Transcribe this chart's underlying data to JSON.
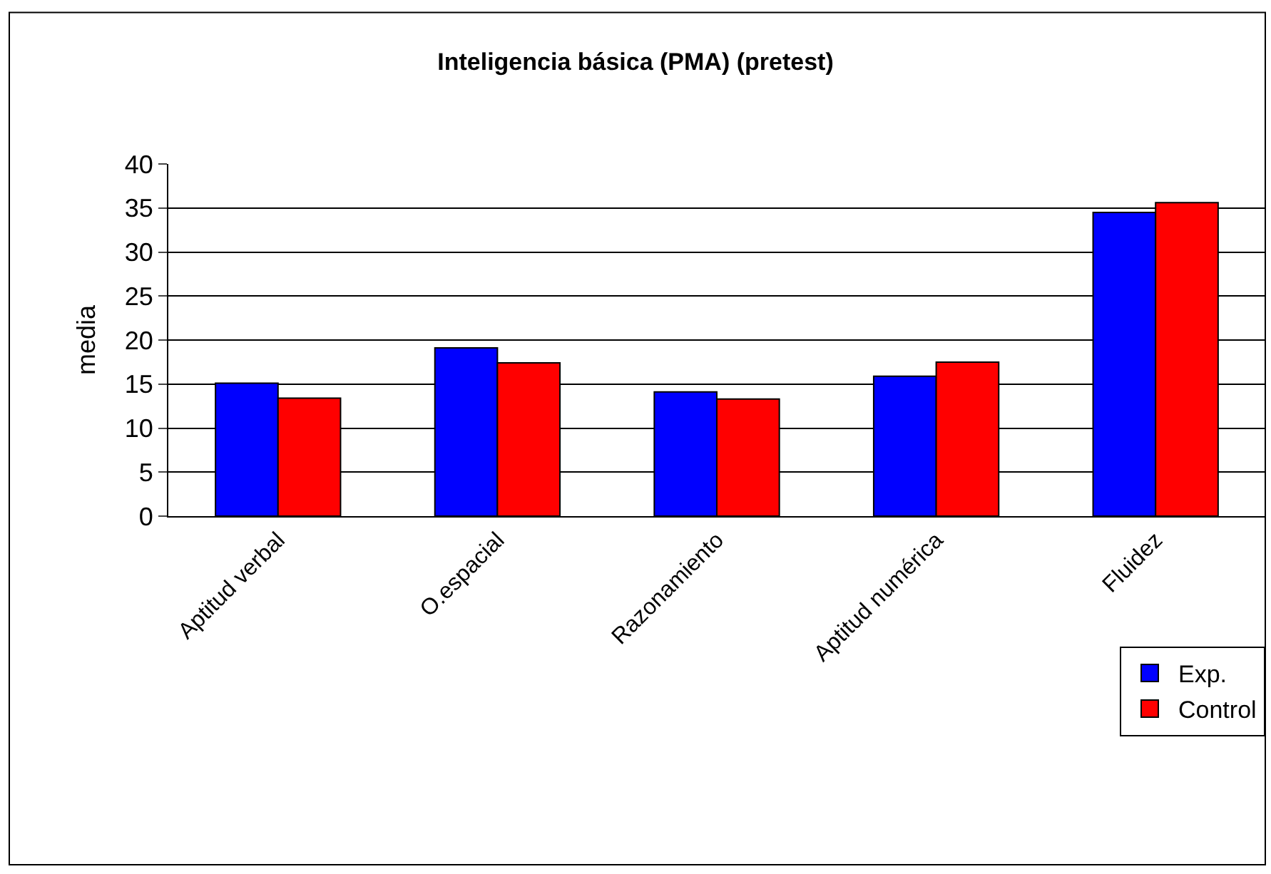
{
  "chart_data": {
    "type": "bar",
    "title": "Inteligencia básica (PMA) (pretest)",
    "ylabel": "media",
    "categories": [
      "Aptitud verbal",
      "O.espacial",
      "Razonamiento",
      "Aptitud numérica",
      "Fluidez"
    ],
    "series": [
      {
        "name": "Exp.",
        "color": "#0000ff",
        "values": [
          15.1,
          19.1,
          14.1,
          15.9,
          34.5
        ]
      },
      {
        "name": "Control",
        "color": "#ff0000",
        "values": [
          13.4,
          17.4,
          13.3,
          17.5,
          35.6
        ]
      }
    ],
    "ylim": [
      0,
      40
    ],
    "yticks": [
      0,
      5,
      10,
      15,
      20,
      25,
      30,
      35,
      40
    ],
    "grid": "y",
    "legend": "bottom right"
  }
}
